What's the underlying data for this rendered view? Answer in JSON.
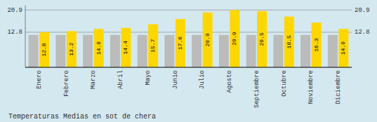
{
  "chart_data": {
    "type": "bar",
    "title": "Temperaturas Medias en sot de chera",
    "categories": [
      "Enero",
      "Febrero",
      "Marzo",
      "Abril",
      "Mayo",
      "Junio",
      "Julio",
      "Agosto",
      "Septiembre",
      "Octubre",
      "Noviembre",
      "Diciembre"
    ],
    "series": [
      {
        "color": "#BBBBBB",
        "values": [
          11.8,
          11.8,
          11.8,
          11.8,
          11.8,
          11.8,
          11.8,
          11.8,
          11.8,
          11.8,
          11.8,
          11.8
        ]
      },
      {
        "color": "#FFD700",
        "data_labels": true,
        "values": [
          12.8,
          13.2,
          14.0,
          14.4,
          15.7,
          17.6,
          20.0,
          20.9,
          20.5,
          18.5,
          16.3,
          14.0
        ],
        "value_labels": [
          "12.8",
          "13.2",
          "14.0",
          "14.4",
          "15.7",
          "17.6",
          "20.0",
          "20.9",
          "20.5",
          "18.5",
          "16.3",
          "14.0"
        ]
      }
    ],
    "ylim": [
      0,
      22.5
    ],
    "yticks": [
      12.8,
      20.9
    ],
    "y2lim": [
      0,
      22.5
    ],
    "y2ticks": [
      12.8,
      20.9
    ],
    "grid": true
  }
}
